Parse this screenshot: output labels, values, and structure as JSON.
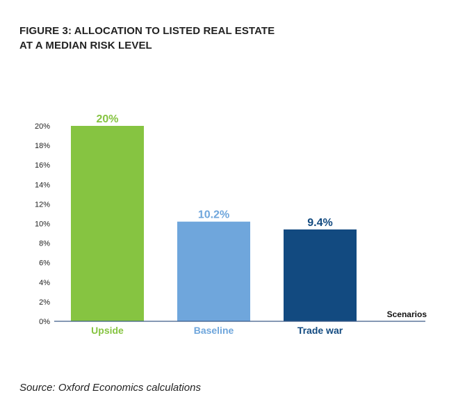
{
  "figure": {
    "title_line1": "FIGURE 3: ALLOCATION TO LISTED REAL ESTATE",
    "title_line2": "AT A MEDIAN RISK LEVEL",
    "source": "Source: Oxford Economics calculations"
  },
  "chart_data": {
    "type": "bar",
    "title": "FIGURE 3: ALLOCATION TO LISTED REAL ESTATE AT A MEDIAN RISK LEVEL",
    "xlabel": "Scenarios",
    "ylabel": "",
    "categories": [
      "Upside",
      "Baseline",
      "Trade war"
    ],
    "values": [
      20,
      10.2,
      9.4
    ],
    "data_labels": [
      "20%",
      "10.2%",
      "9.4%"
    ],
    "colors": [
      "#86c441",
      "#6fa6dc",
      "#124a80"
    ],
    "ylim": [
      0,
      20
    ],
    "yticks": [
      "0%",
      "2%",
      "4%",
      "6%",
      "8%",
      "10%",
      "12%",
      "14%",
      "16%",
      "18%",
      "20%"
    ],
    "grid": false,
    "legend": "none"
  }
}
